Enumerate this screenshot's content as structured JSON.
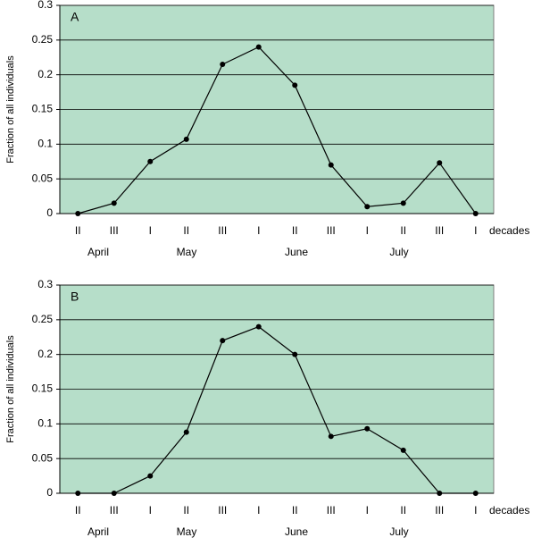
{
  "chart_data": [
    {
      "type": "line",
      "title": "A",
      "y_label": "Fraction of all individuals",
      "x_label": "decades",
      "categories": [
        "II",
        "III",
        "I",
        "II",
        "III",
        "I",
        "II",
        "III",
        "I",
        "II",
        "III",
        "I"
      ],
      "months": [
        "April",
        "May",
        "June",
        "July"
      ],
      "values": [
        0,
        0.015,
        0.075,
        0.107,
        0.215,
        0.24,
        0.185,
        0.07,
        0.01,
        0.015,
        0.073,
        0
      ],
      "color": "#000000",
      "background": "#b6dec9",
      "ylim": [
        0,
        0.3
      ],
      "yticks": [
        0,
        0.05,
        0.1,
        0.15,
        0.2,
        0.25,
        0.3
      ],
      "grid": true
    },
    {
      "type": "line",
      "title": "B",
      "y_label": "Fraction of all individuals",
      "x_label": "decades",
      "categories": [
        "II",
        "III",
        "I",
        "II",
        "III",
        "I",
        "II",
        "III",
        "I",
        "II",
        "III",
        "I"
      ],
      "months": [
        "April",
        "May",
        "June",
        "July"
      ],
      "values": [
        0,
        0,
        0.025,
        0.088,
        0.22,
        0.24,
        0.2,
        0.082,
        0.093,
        0.062,
        0,
        0
      ],
      "color": "#000000",
      "background": "#b6dec9",
      "ylim": [
        0,
        0.3
      ],
      "yticks": [
        0,
        0.05,
        0.1,
        0.15,
        0.2,
        0.25,
        0.3
      ],
      "grid": true
    }
  ]
}
